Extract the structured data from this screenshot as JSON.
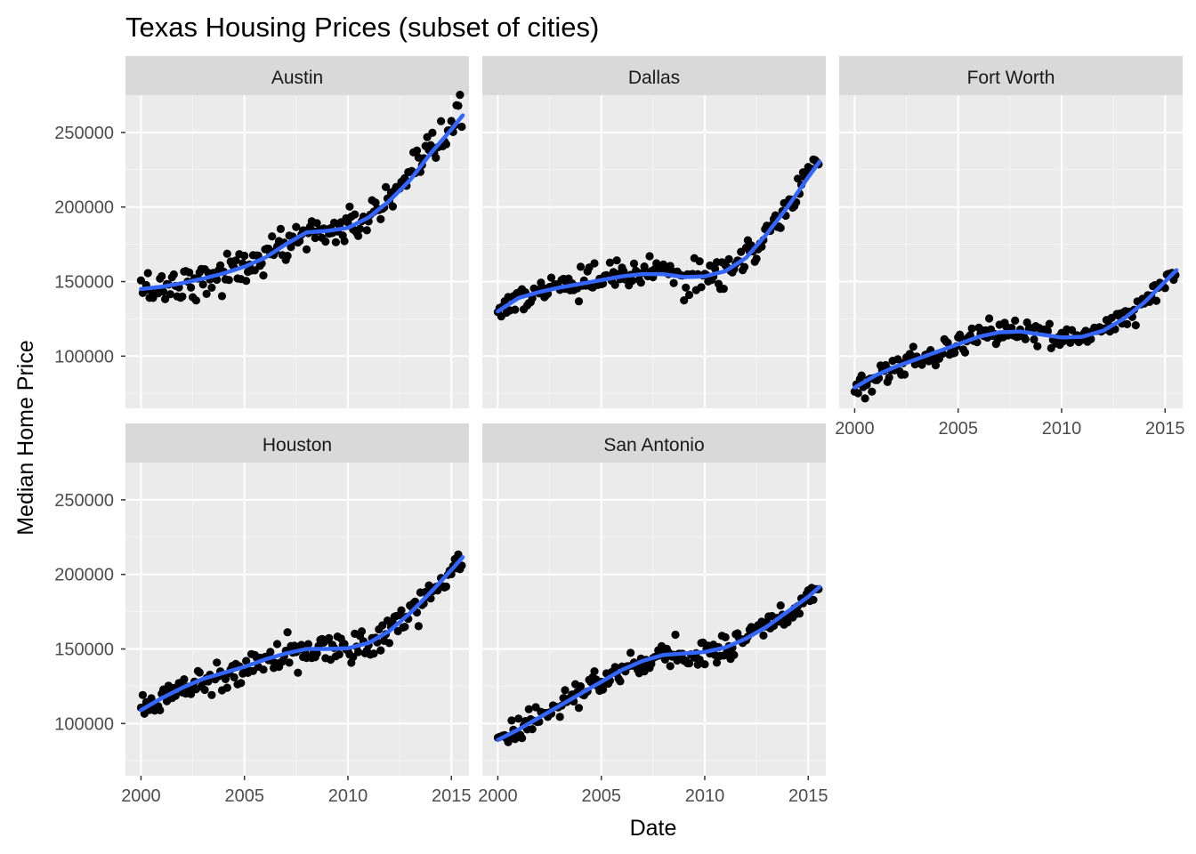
{
  "chart_data": {
    "type": "scatter",
    "title": "Texas Housing Prices (subset of cities)",
    "xlabel": "Date",
    "ylabel": "Median Home Price",
    "xlim": [
      1999.25,
      2015.85
    ],
    "ylim": [
      65000,
      275000
    ],
    "x_ticks": [
      2000,
      2005,
      2010,
      2015
    ],
    "y_ticks": [
      100000,
      150000,
      200000,
      250000
    ],
    "grid": true,
    "smoother": "loess",
    "colors": {
      "panel_bg": "#ebebeb",
      "strip_bg": "#d9d9d9",
      "grid_major": "#ffffff",
      "point": "#000000",
      "smooth_line": "#3366ff"
    },
    "panels": [
      {
        "city": "Austin",
        "trend": [
          [
            2000,
            145000
          ],
          [
            2001,
            146500
          ],
          [
            2002,
            149000
          ],
          [
            2003,
            152000
          ],
          [
            2004,
            155500
          ],
          [
            2005,
            160000
          ],
          [
            2006,
            166000
          ],
          [
            2007,
            175000
          ],
          [
            2008,
            183000
          ],
          [
            2009,
            184000
          ],
          [
            2010,
            186000
          ],
          [
            2011,
            193000
          ],
          [
            2012,
            204000
          ],
          [
            2013,
            218000
          ],
          [
            2014,
            236000
          ],
          [
            2015,
            252000
          ],
          [
            2015.58,
            262000
          ]
        ],
        "noise": 6000
      },
      {
        "city": "Dallas",
        "trend": [
          [
            2000,
            130000
          ],
          [
            2001,
            139000
          ],
          [
            2002,
            143000
          ],
          [
            2003,
            146000
          ],
          [
            2004,
            148500
          ],
          [
            2005,
            151000
          ],
          [
            2006,
            153500
          ],
          [
            2007,
            155000
          ],
          [
            2008,
            155000
          ],
          [
            2009,
            153000
          ],
          [
            2010,
            153500
          ],
          [
            2011,
            157000
          ],
          [
            2012,
            166000
          ],
          [
            2013,
            182000
          ],
          [
            2014,
            200000
          ],
          [
            2015,
            220000
          ],
          [
            2015.58,
            231000
          ]
        ],
        "noise": 5000
      },
      {
        "city": "Fort Worth",
        "trend": [
          [
            2000,
            79000
          ],
          [
            2001,
            87000
          ],
          [
            2002,
            93000
          ],
          [
            2003,
            98000
          ],
          [
            2004,
            103000
          ],
          [
            2005,
            108000
          ],
          [
            2006,
            113000
          ],
          [
            2007,
            116000
          ],
          [
            2008,
            116500
          ],
          [
            2009,
            114500
          ],
          [
            2010,
            112500
          ],
          [
            2011,
            113000
          ],
          [
            2012,
            117000
          ],
          [
            2013,
            125000
          ],
          [
            2014,
            136000
          ],
          [
            2015,
            150000
          ],
          [
            2015.58,
            158000
          ]
        ],
        "noise": 4000
      },
      {
        "city": "Houston",
        "trend": [
          [
            2000,
            109000
          ],
          [
            2001,
            117000
          ],
          [
            2002,
            124000
          ],
          [
            2003,
            130000
          ],
          [
            2004,
            134000
          ],
          [
            2005,
            138000
          ],
          [
            2006,
            143000
          ],
          [
            2007,
            147000
          ],
          [
            2008,
            150000
          ],
          [
            2009,
            150000
          ],
          [
            2010,
            150500
          ],
          [
            2011,
            154000
          ],
          [
            2012,
            162000
          ],
          [
            2013,
            174000
          ],
          [
            2014,
            188000
          ],
          [
            2015,
            203000
          ],
          [
            2015.58,
            212000
          ]
        ],
        "noise": 5500
      },
      {
        "city": "San Antonio",
        "trend": [
          [
            2000,
            89000
          ],
          [
            2001,
            96000
          ],
          [
            2002,
            104000
          ],
          [
            2003,
            112000
          ],
          [
            2004,
            120000
          ],
          [
            2005,
            128000
          ],
          [
            2006,
            136000
          ],
          [
            2007,
            142000
          ],
          [
            2008,
            146000
          ],
          [
            2009,
            147000
          ],
          [
            2010,
            148000
          ],
          [
            2011,
            151000
          ],
          [
            2012,
            157000
          ],
          [
            2013,
            165000
          ],
          [
            2014,
            175000
          ],
          [
            2015,
            185000
          ],
          [
            2015.58,
            192000
          ]
        ],
        "noise": 4500
      }
    ]
  }
}
